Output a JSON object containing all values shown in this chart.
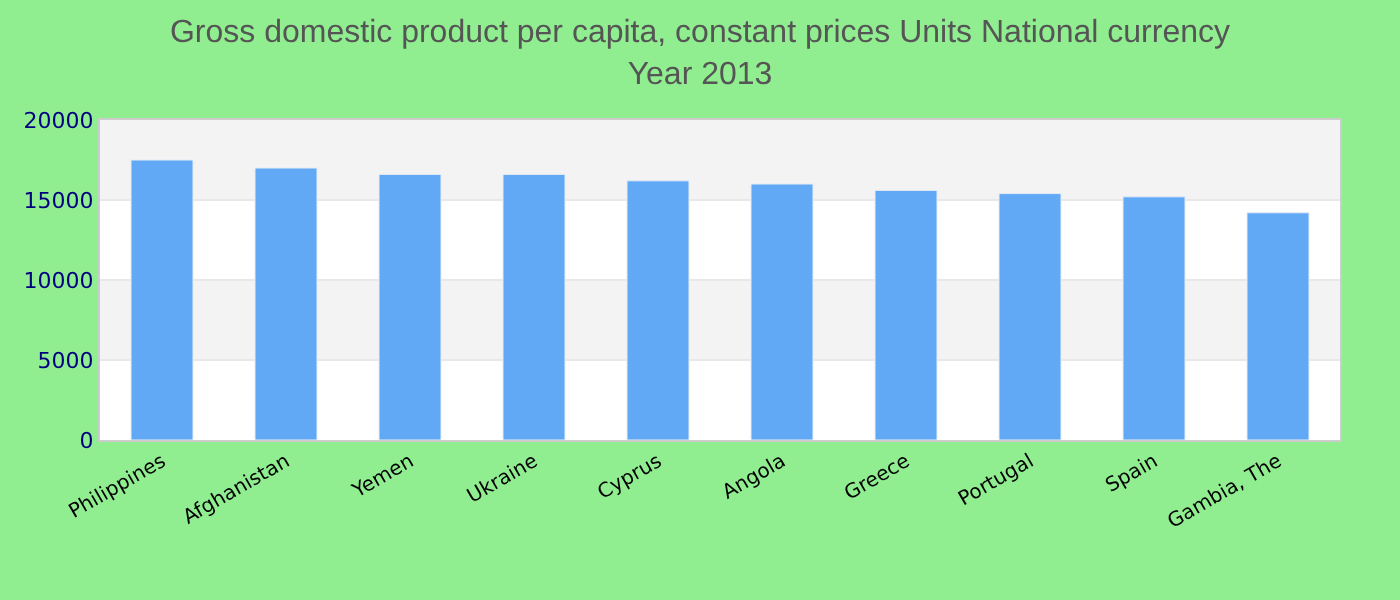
{
  "chart_data": {
    "type": "bar",
    "title": "Gross domestic product per capita, constant prices Units National currency",
    "subtitle": "Year 2013",
    "categories": [
      "Philippines",
      "Afghanistan",
      "Yemen",
      "Ukraine",
      "Cyprus",
      "Angola",
      "Greece",
      "Portugal",
      "Spain",
      "Gambia, The"
    ],
    "values": [
      17500,
      17000,
      16600,
      16600,
      16200,
      16000,
      15600,
      15400,
      15200,
      14200
    ],
    "color": "#61a8f5",
    "ylim": [
      0,
      20000
    ],
    "yticks": [
      0,
      5000,
      10000,
      15000,
      20000
    ],
    "grid": "y"
  }
}
